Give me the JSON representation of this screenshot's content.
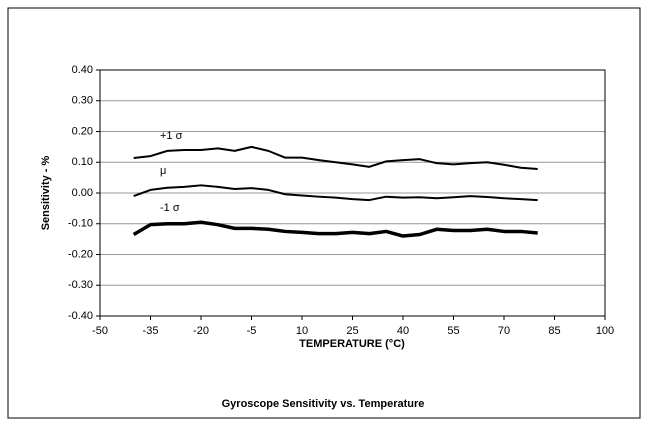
{
  "chart_data": {
    "type": "line",
    "title": "Gyroscope Sensitivity vs. Temperature",
    "x_label": "TEMPERATURE (°C)",
    "y_label": "Sensitivity - %",
    "x": [
      -40,
      -35,
      -30,
      -25,
      -20,
      -15,
      -10,
      -5,
      0,
      5,
      10,
      15,
      20,
      25,
      30,
      35,
      40,
      45,
      50,
      55,
      60,
      65,
      70,
      75,
      80
    ],
    "series": [
      {
        "name": "+1 σ",
        "color": "#000000",
        "width": 2,
        "values": [
          0.114,
          0.12,
          0.137,
          0.14,
          0.14,
          0.145,
          0.137,
          0.15,
          0.137,
          0.115,
          0.115,
          0.107,
          0.1,
          0.093,
          0.085,
          0.103,
          0.107,
          0.11,
          0.097,
          0.093,
          0.097,
          0.1,
          0.092,
          0.082,
          0.078
        ]
      },
      {
        "name": "μ",
        "color": "#000000",
        "width": 2,
        "values": [
          -0.01,
          0.01,
          0.017,
          0.02,
          0.025,
          0.02,
          0.013,
          0.016,
          0.01,
          -0.004,
          -0.008,
          -0.012,
          -0.015,
          -0.02,
          -0.023,
          -0.012,
          -0.015,
          -0.014,
          -0.017,
          -0.014,
          -0.01,
          -0.013,
          -0.017,
          -0.02,
          -0.023
        ]
      },
      {
        "name": "-1 σ",
        "color": "#000000",
        "width": 3.5,
        "values": [
          -0.135,
          -0.103,
          -0.1,
          -0.1,
          -0.095,
          -0.103,
          -0.115,
          -0.115,
          -0.118,
          -0.125,
          -0.128,
          -0.132,
          -0.132,
          -0.128,
          -0.132,
          -0.125,
          -0.14,
          -0.135,
          -0.118,
          -0.122,
          -0.122,
          -0.118,
          -0.125,
          -0.125,
          -0.13
        ]
      }
    ],
    "xlim": [
      -50,
      100
    ],
    "xticks": [
      -50,
      -35,
      -20,
      -5,
      10,
      25,
      40,
      55,
      70,
      85,
      100
    ],
    "ylim": [
      -0.4,
      0.4
    ],
    "yticks": [
      {
        "value": -0.4,
        "label": "-0.40"
      },
      {
        "value": -0.3,
        "label": "-0.30"
      },
      {
        "value": -0.2,
        "label": "-0.20"
      },
      {
        "value": -0.1,
        "label": "-0.10"
      },
      {
        "value": 0,
        "label": "0.00"
      },
      {
        "value": 0.1,
        "label": "0.10"
      },
      {
        "value": 0.2,
        "label": "0.20"
      },
      {
        "value": 0.3,
        "label": "0.30"
      },
      {
        "value": 0.4,
        "label": "0.40"
      }
    ],
    "grid": true,
    "grid_color": "#999999"
  }
}
